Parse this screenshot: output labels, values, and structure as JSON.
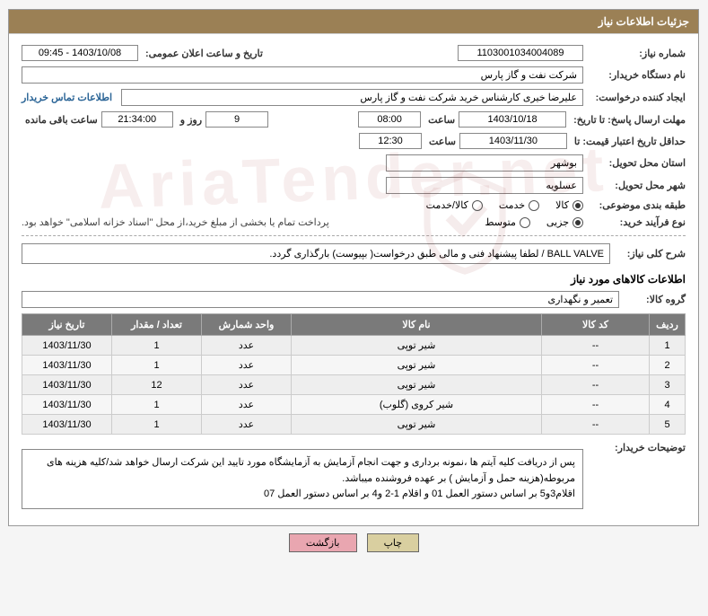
{
  "panel_title": "جزئیات اطلاعات نیاز",
  "labels": {
    "need_no": "شماره نیاز:",
    "announce_dt": "تاریخ و ساعت اعلان عمومی:",
    "buyer_org": "نام دستگاه خریدار:",
    "requester": "ایجاد کننده درخواست:",
    "contact": "اطلاعات تماس خریدار",
    "resp_deadline": "مهلت ارسال پاسخ: تا تاریخ:",
    "hour": "ساعت",
    "days_and": "روز و",
    "remaining": "ساعت باقی مانده",
    "min_validity": "حداقل تاریخ اعتبار قیمت: تا",
    "province": "استان محل تحویل:",
    "city": "شهر محل تحویل:",
    "category": "طبقه بندی موضوعی:",
    "buy_process": "نوع فرآیند خرید:",
    "need_desc": "شرح کلی نیاز:",
    "goods_info": "اطلاعات کالاهای مورد نیاز",
    "goods_group": "گروه کالا:",
    "buyer_notes": "توضیحات خریدار:"
  },
  "values": {
    "need_no": "1103001034004089",
    "announce_dt": "1403/10/08 - 09:45",
    "buyer_org": "شرکت نفت و گاز پارس",
    "requester": "علیرضا  خیری کارشناس خرید  شرکت نفت و گاز پارس",
    "resp_date": "1403/10/18",
    "resp_time": "08:00",
    "days": "9",
    "timer": "21:34:00",
    "validity_date": "1403/11/30",
    "validity_time": "12:30",
    "province": "بوشهر",
    "city": "عسلویه",
    "payment_note": "پرداخت تمام یا بخشی از مبلغ خرید،از محل \"اسناد خزانه اسلامی\" خواهد بود.",
    "need_desc": "BALL VALVE / لطفا پیشنهاد فنی و مالی طبق درخواست( بپیوست) بارگذاری گردد.",
    "goods_group": "تعمیر و نگهداری",
    "buyer_notes_l1": "پس از دریافت کلیه آیتم ها ،نمونه برداری و جهت انجام آزمایش به آزمایشگاه مورد تایید این شرکت ارسال خواهد شد/کلیه هزینه های مربوطه(هزینه حمل و آزمایش ) بر عهده فروشنده میباشد.",
    "buyer_notes_l2": "اقلام3و5 بر اساس دستور العمل 01 و اقلام 1-2 و4 بر اساس دستور العمل 07"
  },
  "category_radios": {
    "options": [
      "کالا",
      "خدمت",
      "کالا/خدمت"
    ],
    "selected": 0
  },
  "process_radios": {
    "options": [
      "جزیی",
      "متوسط"
    ],
    "selected": 0
  },
  "table": {
    "columns": [
      "ردیف",
      "کد کالا",
      "نام کالا",
      "واحد شمارش",
      "تعداد / مقدار",
      "تاریخ نیاز"
    ],
    "col_widths": [
      "40px",
      "120px",
      "auto",
      "100px",
      "100px",
      "100px"
    ],
    "rows": [
      [
        "1",
        "--",
        "شیر توپی",
        "عدد",
        "1",
        "1403/11/30"
      ],
      [
        "2",
        "--",
        "شیر توپی",
        "عدد",
        "1",
        "1403/11/30"
      ],
      [
        "3",
        "--",
        "شیر توپی",
        "عدد",
        "12",
        "1403/11/30"
      ],
      [
        "4",
        "--",
        "شیر کروی (گلوب)",
        "عدد",
        "1",
        "1403/11/30"
      ],
      [
        "5",
        "--",
        "شیر توپی",
        "عدد",
        "1",
        "1403/11/30"
      ]
    ]
  },
  "buttons": {
    "print": "چاپ",
    "back": "بازگشت"
  },
  "colors": {
    "header_bg": "#9b8055",
    "th_bg": "#7a7a7a"
  }
}
